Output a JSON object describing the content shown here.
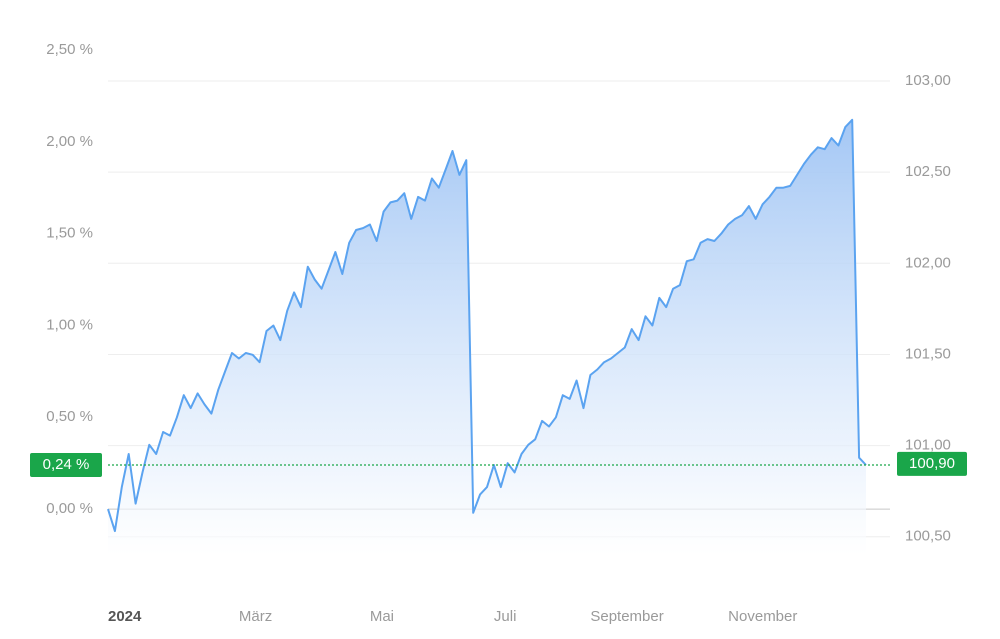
{
  "chart_data": {
    "type": "area",
    "categories": [
      "2024",
      null,
      null,
      null,
      null,
      null,
      null,
      null,
      null,
      null,
      null,
      null,
      null,
      null,
      null,
      null,
      null,
      null,
      null,
      "März",
      null,
      null,
      null,
      null,
      null,
      null,
      null,
      null,
      null,
      null,
      null,
      null,
      null,
      null,
      null,
      null,
      null,
      null,
      "Mai",
      null,
      null,
      null,
      null,
      null,
      null,
      null,
      null,
      null,
      null,
      null,
      null,
      null,
      null,
      null,
      null,
      null,
      "Juli",
      null,
      null,
      null,
      null,
      null,
      null,
      null,
      null,
      null,
      null,
      null,
      null,
      null,
      "September",
      null,
      null,
      null,
      null,
      null,
      null,
      null,
      null,
      null,
      null,
      null,
      null,
      null,
      null,
      null,
      null,
      null,
      null,
      null,
      "November",
      null,
      null,
      null,
      null,
      null,
      null,
      null,
      null,
      null,
      null,
      null,
      null,
      null,
      null,
      null,
      null,
      null,
      null,
      null,
      null
    ],
    "values": [
      0.0,
      -0.12,
      0.12,
      0.3,
      0.03,
      0.2,
      0.35,
      0.3,
      0.42,
      0.4,
      0.5,
      0.62,
      0.55,
      0.63,
      0.57,
      0.52,
      0.65,
      0.75,
      0.85,
      0.82,
      0.85,
      0.84,
      0.8,
      0.97,
      1.0,
      0.92,
      1.08,
      1.18,
      1.1,
      1.32,
      1.25,
      1.2,
      1.3,
      1.4,
      1.28,
      1.45,
      1.52,
      1.53,
      1.55,
      1.46,
      1.62,
      1.67,
      1.68,
      1.72,
      1.58,
      1.7,
      1.68,
      1.8,
      1.75,
      1.85,
      1.95,
      1.82,
      1.9,
      -0.02,
      0.08,
      0.12,
      0.24,
      0.12,
      0.25,
      0.2,
      0.3,
      0.35,
      0.38,
      0.48,
      0.45,
      0.5,
      0.62,
      0.6,
      0.7,
      0.55,
      0.73,
      0.76,
      0.8,
      0.82,
      0.85,
      0.88,
      0.98,
      0.92,
      1.05,
      1.0,
      1.15,
      1.1,
      1.2,
      1.22,
      1.35,
      1.36,
      1.45,
      1.47,
      1.46,
      1.5,
      1.55,
      1.58,
      1.6,
      1.65,
      1.58,
      1.66,
      1.7,
      1.75,
      1.75,
      1.76,
      1.82,
      1.88,
      1.93,
      1.97,
      1.96,
      2.02,
      1.98,
      2.08,
      2.12,
      0.28,
      0.24
    ],
    "color": "#5ba3f0",
    "ylim": [
      -0.25,
      2.5
    ],
    "yticks": [
      {
        "value": 2.5,
        "label": "2,50 %"
      },
      {
        "value": 2.0,
        "label": "2,00 %"
      },
      {
        "value": 1.5,
        "label": "1,50 %"
      },
      {
        "value": 1.0,
        "label": "1,00 %"
      },
      {
        "value": 0.5,
        "label": "0,50 %"
      },
      {
        "value": 0,
        "label": "0,00 %"
      }
    ],
    "y2lim": [
      100.4,
      103.17
    ],
    "y2ticks": [
      {
        "value": 103,
        "label": "103,00"
      },
      {
        "value": 102.5,
        "label": "102,50"
      },
      {
        "value": 102,
        "label": "102,00"
      },
      {
        "value": 101.5,
        "label": "101,50"
      },
      {
        "value": 101,
        "label": "101,00"
      },
      {
        "value": 100.5,
        "label": "100,50"
      }
    ],
    "grid": true,
    "current": {
      "value": 0.24,
      "label": "0,24 %",
      "color": "#1aa64a"
    },
    "current2": {
      "value": 100.9,
      "label": "100,90"
    }
  }
}
